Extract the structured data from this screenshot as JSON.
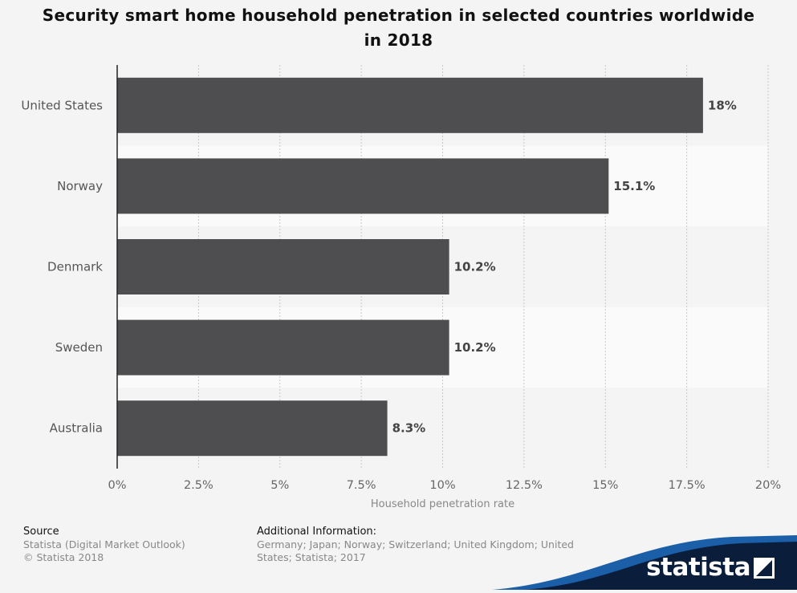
{
  "chart_data": {
    "type": "bar",
    "orientation": "horizontal",
    "title": "Security smart home household penetration in selected countries worldwide in 2018",
    "title_lines": [
      "Security smart home household penetration in selected countries worldwide",
      "in 2018"
    ],
    "categories": [
      "United States",
      "Norway",
      "Denmark",
      "Sweden",
      "Australia"
    ],
    "values": [
      18,
      15.1,
      10.2,
      10.2,
      8.3
    ],
    "value_labels": [
      "18%",
      "15.1%",
      "10.2%",
      "10.2%",
      "8.3%"
    ],
    "xlabel": "Household penetration rate",
    "ylabel": "",
    "xlim": [
      0,
      20
    ],
    "xticks": [
      0,
      2.5,
      5,
      7.5,
      10,
      12.5,
      15,
      17.5,
      20
    ],
    "xtick_labels": [
      "0%",
      "2.5%",
      "5%",
      "7.5%",
      "10%",
      "12.5%",
      "15%",
      "17.5%",
      "20%"
    ],
    "grid": true,
    "legend": "none",
    "bar_color": "#4e4e50"
  },
  "footer": {
    "source_heading": "Source",
    "source_lines": [
      "Statista (Digital Market Outlook)",
      "© Statista 2018"
    ],
    "info_heading": "Additional Information:",
    "info_lines": [
      "Germany; Japan; Norway; Switzerland; United Kingdom; United",
      "States; Statista; 2017"
    ]
  },
  "brand": {
    "name": "statista",
    "colors": {
      "dark": "#0a1e3c",
      "accent": "#1b5fa8"
    }
  }
}
